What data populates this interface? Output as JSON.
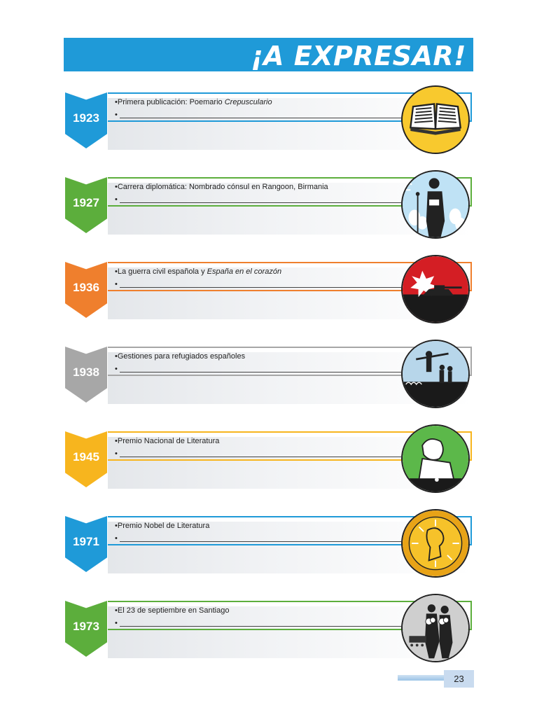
{
  "header": {
    "title": "¡A EXPRESAR!"
  },
  "colors": {
    "blue": "#1f9ad8",
    "green": "#5cae3c",
    "orange": "#ef7f2d",
    "gray": "#a7a7a7",
    "yellow": "#f7b51e"
  },
  "timeline": [
    {
      "year": "1923",
      "text": "Primera publicación: Poemario ",
      "italic": "Crepusculario",
      "color": "#1f9ad8",
      "icon": "book-icon"
    },
    {
      "year": "1927",
      "text": "Carrera diplomática: Nombrado cónsul en Rangoon, Birmania",
      "italic": "",
      "color": "#5cae3c",
      "icon": "speaker-icon"
    },
    {
      "year": "1936",
      "text": "La guerra civil española y ",
      "italic": "España en el corazón",
      "color": "#ef7f2d",
      "icon": "tank-icon"
    },
    {
      "year": "1938",
      "text": "Gestiones para refugiados españoles",
      "italic": "",
      "color": "#a7a7a7",
      "icon": "refugees-icon"
    },
    {
      "year": "1945",
      "text": "Premio Nacional de Literatura",
      "italic": "",
      "color": "#f7b51e",
      "icon": "writer-icon"
    },
    {
      "year": "1971",
      "text": "Premio Nobel de Literatura",
      "italic": "",
      "color": "#1f9ad8",
      "icon": "nobel-medal-icon"
    },
    {
      "year": "1973",
      "text": "El 23 de septiembre en Santiago",
      "italic": "",
      "color": "#5cae3c",
      "icon": "funeral-icon"
    }
  ],
  "bullet": "•",
  "footer": {
    "page_number": "23"
  }
}
